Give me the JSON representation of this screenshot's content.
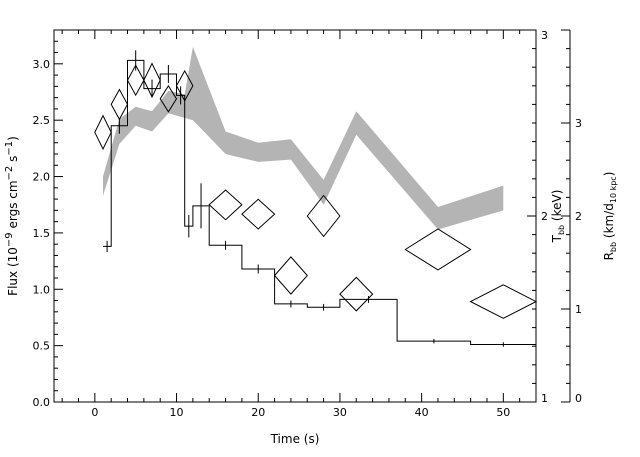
{
  "chart_data": {
    "type": "line",
    "title": "",
    "xlabel": "Time (s)",
    "xlim": [
      -5,
      54
    ],
    "x_ticks": [
      0,
      10,
      20,
      30,
      40,
      50
    ],
    "y_left": {
      "label_html": "Flux (10<sup>−9</sup> ergs cm<sup>−2</sup> s<sup>−1</sup>)",
      "label_plain": "Flux (10-9 ergs cm-2 s-1)",
      "ylim": [
        0.0,
        3.3
      ],
      "ticks": [
        "0.0",
        "0.5",
        "1.0",
        "1.5",
        "2.0",
        "2.5",
        "3.0"
      ]
    },
    "y_right_inner": {
      "label": "Tbb (keV)",
      "label_main": "T",
      "label_sub": "bb",
      "label_rest": " (keV)",
      "scale": "linear",
      "range": [
        1,
        3
      ],
      "ticks": [
        "1",
        "2",
        "3"
      ]
    },
    "y_right_outer": {
      "label": "Rbb (km/d10 kpc)",
      "label_main": "R",
      "label_sub": "bb",
      "label_mid": " (km/d",
      "label_sub2": "10 kpc",
      "label_end": ")",
      "range": [
        0,
        4.0
      ],
      "ticks": [
        "0",
        "1",
        "2",
        "3"
      ]
    },
    "series": [
      {
        "style": "histogram-step",
        "units": "flux",
        "bins": [
          {
            "x0": 1,
            "x1": 2,
            "y": 1.38,
            "err": 0.05
          },
          {
            "x0": 2,
            "x1": 4,
            "y": 2.45,
            "err": 0.07
          },
          {
            "x0": 4,
            "x1": 6,
            "y": 3.03,
            "err": 0.09
          },
          {
            "x0": 6,
            "x1": 8,
            "y": 2.78,
            "err": 0.08
          },
          {
            "x0": 8,
            "x1": 10,
            "y": 2.91,
            "err": 0.08
          },
          {
            "x0": 10,
            "x1": 11,
            "y": 2.72,
            "err": 0.08
          },
          {
            "x0": 11,
            "x1": 12,
            "y": 1.56,
            "err": 0.1
          },
          {
            "x0": 12,
            "x1": 14,
            "y": 1.74,
            "err": 0.2
          },
          {
            "x0": 14,
            "x1": 18,
            "y": 1.39,
            "err": 0.04
          },
          {
            "x0": 18,
            "x1": 22,
            "y": 1.18,
            "err": 0.04
          },
          {
            "x0": 22,
            "x1": 26,
            "y": 0.87,
            "err": 0.03
          },
          {
            "x0": 26,
            "x1": 30,
            "y": 0.84,
            "err": 0.03
          },
          {
            "x0": 30,
            "x1": 37,
            "y": 0.91,
            "err": 0.03
          },
          {
            "x0": 37,
            "x1": 46,
            "y": 0.54,
            "err": 0.02
          },
          {
            "x0": 46,
            "x1": 54,
            "y": 0.51,
            "err": 0.02
          }
        ]
      },
      {
        "style": "shaded-band",
        "units": "flux",
        "x": [
          1,
          3,
          5,
          7,
          9,
          11,
          12,
          16,
          20,
          24,
          28,
          32,
          42,
          50
        ],
        "lo": [
          1.83,
          2.29,
          2.45,
          2.4,
          2.56,
          2.52,
          2.5,
          2.2,
          2.13,
          2.15,
          1.75,
          2.37,
          1.53,
          1.7
        ],
        "hi": [
          2.0,
          2.51,
          2.62,
          2.58,
          2.76,
          2.73,
          3.15,
          2.4,
          2.3,
          2.33,
          1.97,
          2.58,
          1.73,
          1.92
        ]
      },
      {
        "style": "diamonds",
        "units": "Tbb",
        "points": [
          {
            "x": 1,
            "xerr": 1,
            "y": 2.45,
            "yerr": 0.09
          },
          {
            "x": 3,
            "xerr": 1,
            "y": 2.6,
            "yerr": 0.08
          },
          {
            "x": 5,
            "xerr": 1,
            "y": 2.73,
            "yerr": 0.08
          },
          {
            "x": 7,
            "xerr": 1,
            "y": 2.73,
            "yerr": 0.09
          },
          {
            "x": 9,
            "xerr": 1,
            "y": 2.63,
            "yerr": 0.07
          },
          {
            "x": 11,
            "xerr": 1,
            "y": 2.7,
            "yerr": 0.08
          },
          {
            "x": 16,
            "xerr": 2,
            "y": 2.06,
            "yerr": 0.08
          },
          {
            "x": 20,
            "xerr": 2,
            "y": 2.01,
            "yerr": 0.08
          },
          {
            "x": 24,
            "xerr": 2,
            "y": 1.68,
            "yerr": 0.1
          },
          {
            "x": 28,
            "xerr": 2,
            "y": 2.0,
            "yerr": 0.11
          },
          {
            "x": 32,
            "xerr": 2,
            "y": 1.58,
            "yerr": 0.09
          },
          {
            "x": 42,
            "xerr": 4,
            "y": 1.82,
            "yerr": 0.11
          },
          {
            "x": 50,
            "xerr": 4,
            "y": 1.54,
            "yerr": 0.09
          }
        ]
      }
    ],
    "colors": {
      "line": "#000000",
      "band": "#b4b4b4",
      "background": "#ffffff"
    },
    "grid": false,
    "legend": "none"
  }
}
